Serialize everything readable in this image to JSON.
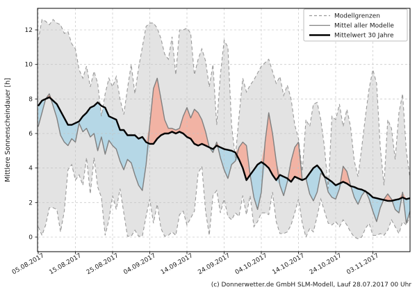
{
  "chart_data": {
    "type": "area",
    "title": "",
    "xlabel": "",
    "ylabel": "Mittlere Sonnenscheindauer [h]",
    "ylim": [
      -0.85,
      13.25
    ],
    "yticks": [
      0,
      2,
      4,
      6,
      8,
      10,
      12
    ],
    "grid": true,
    "legend_position": "upper right",
    "n_days": 101,
    "x_start_date": "05.08.2017",
    "x_end_date": "13.11.2017",
    "x_tick_days": [
      0,
      10,
      20,
      30,
      40,
      50,
      60,
      70,
      80,
      90
    ],
    "x_tick_labels": [
      "05.08.2017",
      "15.08.2017",
      "25.08.2017",
      "04.09.2017",
      "14.09.2017",
      "24.09.2017",
      "04.10.2017",
      "14.10.2017",
      "24.10.2017",
      "03.11.2017"
    ],
    "series": [
      {
        "name": "Modellgrenzen (obere Grenze)",
        "values": [
          11.4,
          12.6,
          12.5,
          12.3,
          12.6,
          12.4,
          12.3,
          11.8,
          11.9,
          11.2,
          10.9,
          9.7,
          9.2,
          9.9,
          8.7,
          9.6,
          8.9,
          7.0,
          8.3,
          9.2,
          8.7,
          9.3,
          8.0,
          7.1,
          8.6,
          10.0,
          8.3,
          9.8,
          11.0,
          12.2,
          12.4,
          12.4,
          12.1,
          11.5,
          10.6,
          10.3,
          11.6,
          9.4,
          12.0,
          12.0,
          12.1,
          11.8,
          9.4,
          10.3,
          10.9,
          10.2,
          8.7,
          10.0,
          6.5,
          9.4,
          11.4,
          11.0,
          6.5,
          4.6,
          7.0,
          9.2,
          8.4,
          8.8,
          9.1,
          9.5,
          9.9,
          10.1,
          10.3,
          9.6,
          8.9,
          9.3,
          8.2,
          8.8,
          8.0,
          6.5,
          5.7,
          3.8,
          6.8,
          6.4,
          7.7,
          7.8,
          6.8,
          5.2,
          2.8,
          7.0,
          6.8,
          7.7,
          6.4,
          7.4,
          6.4,
          4.4,
          3.5,
          5.2,
          7.0,
          8.6,
          9.7,
          8.9,
          5.2,
          3.0,
          6.8,
          6.3,
          4.5,
          7.2,
          8.3,
          5.0,
          3.4
        ]
      },
      {
        "name": "Modellgrenzen (untere Grenze)",
        "values": [
          0.6,
          0.1,
          0.7,
          1.7,
          1.7,
          1.6,
          0.3,
          1.5,
          3.9,
          4.2,
          3.3,
          3.6,
          3.0,
          4.6,
          2.5,
          4.6,
          2.9,
          2.3,
          0.1,
          1.0,
          2.4,
          1.6,
          2.8,
          1.4,
          0.05,
          0.05,
          0.4,
          0.05,
          0.05,
          1.2,
          2.2,
          0.8,
          1.9,
          0.5,
          0.05,
          0.1,
          0.3,
          0.1,
          1.3,
          1.5,
          0.7,
          1.1,
          1.5,
          3.7,
          4.1,
          1.5,
          0.1,
          2.4,
          2.7,
          1.4,
          2.2,
          1.2,
          1.0,
          1.4,
          1.2,
          2.4,
          1.3,
          2.4,
          0.6,
          0.9,
          1.4,
          1.4,
          1.3,
          2.6,
          0.9,
          0.2,
          0.2,
          0.3,
          0.7,
          1.4,
          2.2,
          0.8,
          0.0,
          0.5,
          0.3,
          1.2,
          2.2,
          1.5,
          0.8,
          0.7,
          0.9,
          0.6,
          1.0,
          0.7,
          0.3,
          0.0,
          -0.1,
          0.0,
          0.5,
          0.8,
          0.1,
          0.1,
          0.2,
          0.1,
          0.4,
          1.0,
          0.6,
          0.2,
          0.9,
          0.7,
          1.2
        ]
      },
      {
        "name": "Mittel aller Modelle",
        "values": [
          6.4,
          7.2,
          8.0,
          8.3,
          7.6,
          6.9,
          5.9,
          5.5,
          5.3,
          5.7,
          5.5,
          6.6,
          6.1,
          6.3,
          5.8,
          6.0,
          5.0,
          5.8,
          4.8,
          5.6,
          5.3,
          5.1,
          4.4,
          3.9,
          4.5,
          4.3,
          3.6,
          3.0,
          2.7,
          4.2,
          6.5,
          8.6,
          9.2,
          8.0,
          6.8,
          6.3,
          6.3,
          6.2,
          6.3,
          7.0,
          7.5,
          6.9,
          7.4,
          7.2,
          6.8,
          6.1,
          5.2,
          4.9,
          5.5,
          4.6,
          3.9,
          3.4,
          4.2,
          4.4,
          5.2,
          5.5,
          5.3,
          3.6,
          2.3,
          1.6,
          2.6,
          5.5,
          7.2,
          6.0,
          4.4,
          3.0,
          2.4,
          3.2,
          4.4,
          5.2,
          5.5,
          3.3,
          3.4,
          2.5,
          2.1,
          2.6,
          3.7,
          3.5,
          2.6,
          2.3,
          2.2,
          2.8,
          4.1,
          3.8,
          3.0,
          2.3,
          1.9,
          2.4,
          2.7,
          2.2,
          1.5,
          0.9,
          1.7,
          2.2,
          2.5,
          2.2,
          1.6,
          1.4,
          2.6,
          0.8,
          1.5
        ]
      },
      {
        "name": "Mittelwert 30 Jahre",
        "values": [
          7.6,
          7.9,
          8.0,
          8.1,
          7.9,
          7.7,
          7.3,
          6.9,
          6.5,
          6.5,
          6.6,
          6.7,
          7.0,
          7.2,
          7.5,
          7.6,
          7.8,
          7.6,
          7.5,
          7.0,
          6.9,
          6.8,
          6.2,
          6.2,
          5.9,
          5.9,
          5.9,
          5.7,
          5.8,
          5.5,
          5.4,
          5.4,
          5.7,
          5.9,
          6.0,
          6.0,
          6.1,
          6.0,
          6.1,
          6.0,
          5.8,
          5.7,
          5.4,
          5.3,
          5.4,
          5.3,
          5.2,
          5.1,
          5.3,
          5.2,
          5.1,
          5.05,
          5.0,
          4.9,
          4.5,
          4.0,
          3.3,
          3.6,
          3.9,
          4.2,
          4.35,
          4.2,
          4.0,
          3.6,
          3.3,
          3.6,
          3.5,
          3.4,
          3.2,
          3.5,
          3.4,
          3.3,
          3.4,
          3.7,
          4.0,
          4.15,
          3.9,
          3.5,
          3.35,
          3.2,
          3.0,
          3.1,
          3.2,
          3.1,
          2.95,
          2.9,
          2.8,
          2.75,
          2.65,
          2.5,
          2.3,
          2.25,
          2.2,
          2.15,
          2.1,
          2.1,
          2.15,
          2.2,
          2.3,
          2.2,
          2.25
        ]
      }
    ]
  },
  "legend": {
    "items": [
      {
        "label": "Modellgrenzen",
        "style": "dashed-gray"
      },
      {
        "label": "Mittel aller Modelle",
        "style": "solid-gray"
      },
      {
        "label": "Mittelwert 30 Jahre",
        "style": "solid-black-thick"
      }
    ]
  },
  "footer": {
    "credit": "(c) Donnerwetter.de GmbH SLM-Modell, Lauf 28.07.2017 00 Uhr"
  },
  "colors": {
    "band_fill": "#e3e3e3",
    "band_border": "#999999",
    "mean_line": "#7f7f7f",
    "clim_line": "#000000",
    "above_fill": "#f2b3a4",
    "below_fill": "#b5d7e6",
    "grid": "#c3c3c3",
    "frame": "#000000",
    "background": "#ffffff"
  }
}
